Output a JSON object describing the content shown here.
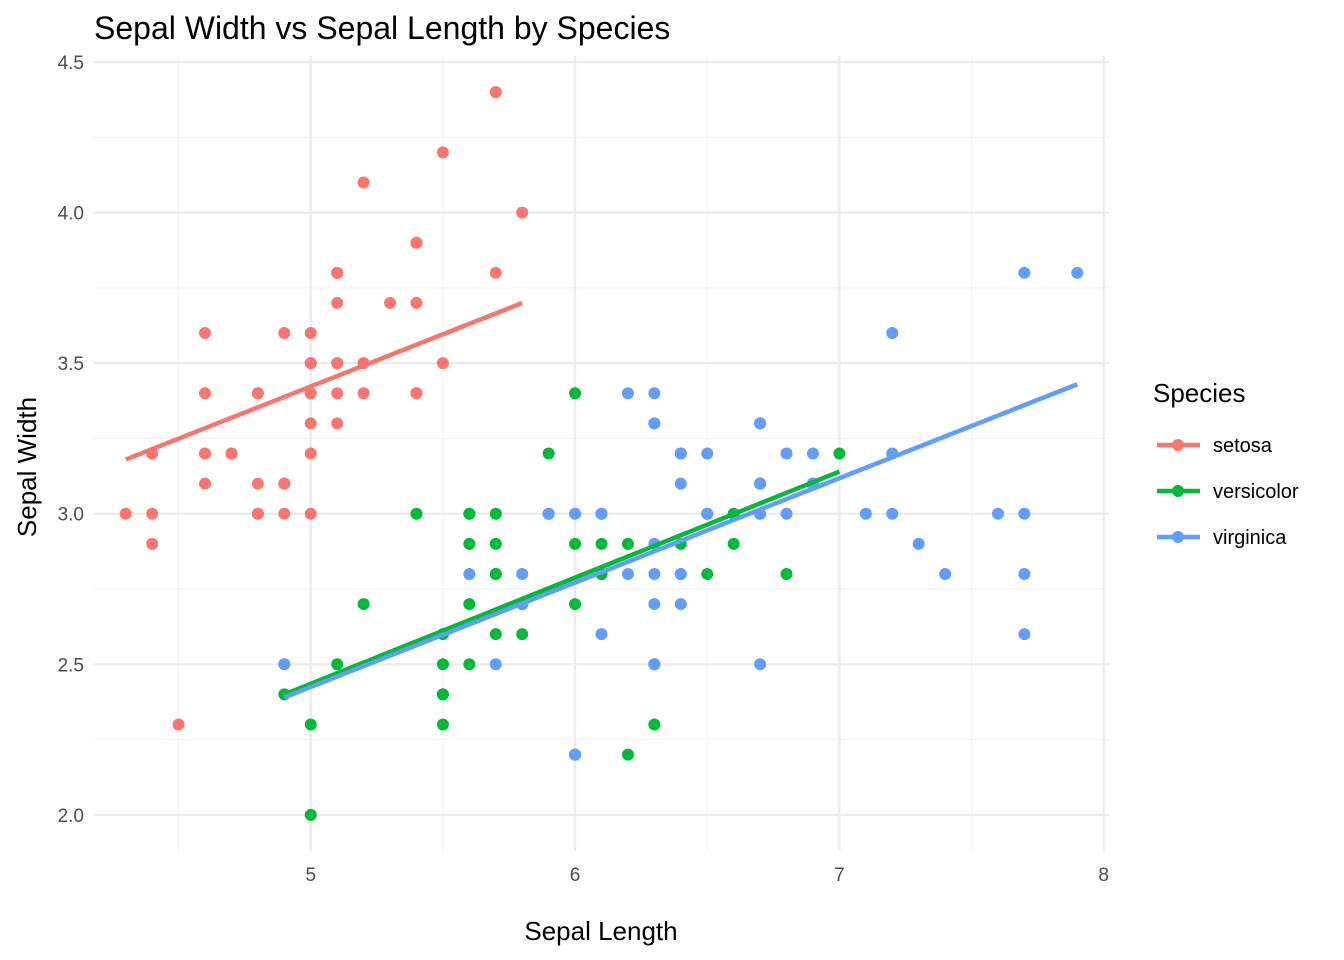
{
  "chart_data": {
    "type": "scatter",
    "title": "Sepal Width vs Sepal Length by Species",
    "xlabel": "Sepal Length",
    "ylabel": "Sepal Width",
    "xlim": [
      4.18,
      8.02
    ],
    "ylim": [
      1.88,
      4.52
    ],
    "x_ticks": [
      5,
      6,
      7,
      8
    ],
    "x_tick_labels": [
      "5",
      "6",
      "7",
      "8"
    ],
    "y_ticks": [
      2.0,
      2.5,
      3.0,
      3.5,
      4.0,
      4.5
    ],
    "y_tick_labels": [
      "2.0",
      "2.5",
      "3.0",
      "3.5",
      "4.0",
      "4.5"
    ],
    "grid": true,
    "legend": {
      "title": "Species",
      "placement": "right"
    },
    "series": [
      {
        "name": "setosa",
        "color": "#F8766D",
        "points": [
          [
            5.1,
            3.5
          ],
          [
            4.9,
            3.0
          ],
          [
            4.7,
            3.2
          ],
          [
            4.6,
            3.1
          ],
          [
            5.0,
            3.6
          ],
          [
            5.4,
            3.9
          ],
          [
            4.6,
            3.4
          ],
          [
            5.0,
            3.4
          ],
          [
            4.4,
            2.9
          ],
          [
            4.9,
            3.1
          ],
          [
            5.4,
            3.7
          ],
          [
            4.8,
            3.4
          ],
          [
            4.8,
            3.0
          ],
          [
            4.3,
            3.0
          ],
          [
            5.8,
            4.0
          ],
          [
            5.7,
            4.4
          ],
          [
            5.4,
            3.9
          ],
          [
            5.1,
            3.5
          ],
          [
            5.7,
            3.8
          ],
          [
            5.1,
            3.8
          ],
          [
            5.4,
            3.4
          ],
          [
            5.1,
            3.7
          ],
          [
            4.6,
            3.6
          ],
          [
            5.1,
            3.3
          ],
          [
            4.8,
            3.4
          ],
          [
            5.0,
            3.0
          ],
          [
            5.0,
            3.4
          ],
          [
            5.2,
            3.5
          ],
          [
            5.2,
            3.4
          ],
          [
            4.7,
            3.2
          ],
          [
            4.8,
            3.1
          ],
          [
            5.4,
            3.4
          ],
          [
            5.2,
            4.1
          ],
          [
            5.5,
            4.2
          ],
          [
            4.9,
            3.1
          ],
          [
            5.0,
            3.2
          ],
          [
            5.5,
            3.5
          ],
          [
            4.9,
            3.6
          ],
          [
            4.4,
            3.0
          ],
          [
            5.1,
            3.4
          ],
          [
            5.0,
            3.5
          ],
          [
            4.5,
            2.3
          ],
          [
            4.4,
            3.2
          ],
          [
            5.0,
            3.5
          ],
          [
            5.1,
            3.8
          ],
          [
            4.8,
            3.0
          ],
          [
            5.1,
            3.8
          ],
          [
            4.6,
            3.2
          ],
          [
            5.3,
            3.7
          ],
          [
            5.0,
            3.3
          ]
        ],
        "fit": {
          "x": [
            4.3,
            5.8
          ],
          "y": [
            3.18,
            3.7
          ]
        }
      },
      {
        "name": "versicolor",
        "color": "#00BA38",
        "points": [
          [
            7.0,
            3.2
          ],
          [
            6.4,
            3.2
          ],
          [
            6.9,
            3.1
          ],
          [
            5.5,
            2.3
          ],
          [
            6.5,
            2.8
          ],
          [
            5.7,
            2.8
          ],
          [
            6.3,
            3.3
          ],
          [
            4.9,
            2.4
          ],
          [
            6.6,
            2.9
          ],
          [
            5.2,
            2.7
          ],
          [
            5.0,
            2.0
          ],
          [
            5.9,
            3.0
          ],
          [
            6.0,
            2.2
          ],
          [
            6.1,
            2.9
          ],
          [
            5.6,
            2.9
          ],
          [
            6.7,
            3.1
          ],
          [
            5.6,
            3.0
          ],
          [
            5.8,
            2.7
          ],
          [
            6.2,
            2.2
          ],
          [
            5.6,
            2.5
          ],
          [
            5.9,
            3.2
          ],
          [
            6.1,
            2.8
          ],
          [
            6.3,
            2.5
          ],
          [
            6.1,
            2.8
          ],
          [
            6.4,
            2.9
          ],
          [
            6.6,
            3.0
          ],
          [
            6.8,
            2.8
          ],
          [
            6.7,
            3.0
          ],
          [
            6.0,
            2.9
          ],
          [
            5.7,
            2.6
          ],
          [
            5.5,
            2.4
          ],
          [
            5.5,
            2.4
          ],
          [
            5.8,
            2.7
          ],
          [
            6.0,
            2.7
          ],
          [
            5.4,
            3.0
          ],
          [
            6.0,
            3.4
          ],
          [
            6.7,
            3.1
          ],
          [
            6.3,
            2.3
          ],
          [
            5.6,
            3.0
          ],
          [
            5.5,
            2.5
          ],
          [
            5.5,
            2.6
          ],
          [
            6.1,
            3.0
          ],
          [
            5.8,
            2.6
          ],
          [
            5.0,
            2.3
          ],
          [
            5.6,
            2.7
          ],
          [
            5.7,
            3.0
          ],
          [
            5.7,
            2.9
          ],
          [
            6.2,
            2.9
          ],
          [
            5.1,
            2.5
          ],
          [
            5.7,
            2.8
          ]
        ],
        "fit": {
          "x": [
            4.9,
            7.0
          ],
          "y": [
            2.4,
            3.14
          ]
        }
      },
      {
        "name": "virginica",
        "color": "#619CFF",
        "points": [
          [
            6.3,
            3.3
          ],
          [
            5.8,
            2.7
          ],
          [
            7.1,
            3.0
          ],
          [
            6.3,
            2.9
          ],
          [
            6.5,
            3.0
          ],
          [
            7.6,
            3.0
          ],
          [
            4.9,
            2.5
          ],
          [
            7.3,
            2.9
          ],
          [
            6.7,
            2.5
          ],
          [
            7.2,
            3.6
          ],
          [
            6.5,
            3.2
          ],
          [
            6.4,
            2.7
          ],
          [
            6.8,
            3.0
          ],
          [
            5.7,
            2.5
          ],
          [
            5.8,
            2.8
          ],
          [
            6.4,
            3.2
          ],
          [
            6.5,
            3.0
          ],
          [
            7.7,
            3.8
          ],
          [
            7.7,
            2.6
          ],
          [
            6.0,
            2.2
          ],
          [
            6.9,
            3.2
          ],
          [
            5.6,
            2.8
          ],
          [
            7.7,
            2.8
          ],
          [
            6.3,
            2.7
          ],
          [
            6.7,
            3.3
          ],
          [
            7.2,
            3.2
          ],
          [
            6.2,
            2.8
          ],
          [
            6.1,
            3.0
          ],
          [
            6.4,
            2.8
          ],
          [
            7.2,
            3.0
          ],
          [
            7.4,
            2.8
          ],
          [
            7.9,
            3.8
          ],
          [
            6.4,
            2.8
          ],
          [
            6.3,
            2.8
          ],
          [
            6.1,
            2.6
          ],
          [
            7.7,
            3.0
          ],
          [
            6.3,
            3.4
          ],
          [
            6.4,
            3.1
          ],
          [
            6.0,
            3.0
          ],
          [
            6.9,
            3.1
          ],
          [
            6.7,
            3.1
          ],
          [
            6.9,
            3.1
          ],
          [
            5.8,
            2.7
          ],
          [
            6.8,
            3.2
          ],
          [
            6.7,
            3.3
          ],
          [
            6.7,
            3.0
          ],
          [
            6.3,
            2.5
          ],
          [
            6.5,
            3.0
          ],
          [
            6.2,
            3.4
          ],
          [
            5.9,
            3.0
          ]
        ],
        "fit": {
          "x": [
            4.9,
            7.9
          ],
          "y": [
            2.39,
            3.43
          ]
        }
      }
    ]
  }
}
